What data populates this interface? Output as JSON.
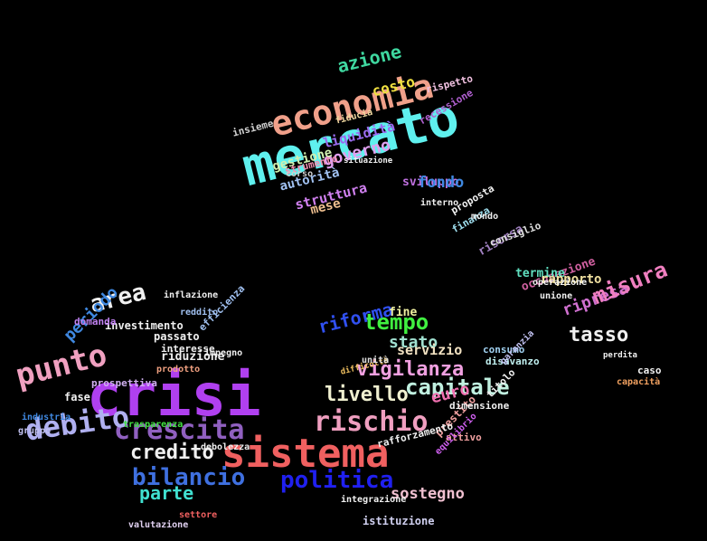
{
  "words": [
    {
      "text": "mercato",
      "color": "#5ff0ee"
    },
    {
      "text": "economia",
      "color": "#f0a08a"
    },
    {
      "text": "azione",
      "color": "#3fd8a0"
    },
    {
      "text": "costo",
      "color": "#f0e040"
    },
    {
      "text": "governo",
      "color": "#e0a0f0"
    },
    {
      "text": "gestione",
      "color": "#d0f0b0"
    },
    {
      "text": "liquidità",
      "color": "#9a6cf0"
    },
    {
      "text": "autorità",
      "color": "#a0c0f0"
    },
    {
      "text": "strumento",
      "color": "#f08fb0"
    },
    {
      "text": "fiducia",
      "color": "#f0d8a0"
    },
    {
      "text": "insieme",
      "color": "#d0d0d0"
    },
    {
      "text": "sviluppo",
      "color": "#c070e0"
    },
    {
      "text": "struttura",
      "color": "#d080f0"
    },
    {
      "text": "mese",
      "color": "#f0c090"
    },
    {
      "text": "fondo",
      "color": "#3f88e0"
    },
    {
      "text": "rispetto",
      "color": "#f0c0e0"
    },
    {
      "text": "recessione",
      "color": "#b060d0"
    },
    {
      "text": "corso",
      "color": "#d0d0d0"
    },
    {
      "text": "risorsa",
      "color": "#a080c0"
    },
    {
      "text": "occupazione",
      "color": "#d060a0"
    },
    {
      "text": "termine",
      "color": "#60e0c0"
    },
    {
      "text": "rapporto",
      "color": "#f0e0a0"
    },
    {
      "text": "ripresa",
      "color": "#d070d0"
    },
    {
      "text": "misura",
      "color": "#f07fc0"
    },
    {
      "text": "tasso",
      "color": "#f0f0f0"
    },
    {
      "text": "crisi",
      "color": "#b040f0"
    },
    {
      "text": "sistema",
      "color": "#f06060"
    },
    {
      "text": "bilancio",
      "color": "#3f70e0"
    },
    {
      "text": "politica",
      "color": "#2020f0"
    },
    {
      "text": "rischio",
      "color": "#f09fc0"
    },
    {
      "text": "crescita",
      "color": "#9060c0"
    },
    {
      "text": "punto",
      "color": "#f0a0c0"
    },
    {
      "text": "debito",
      "color": "#b0b0f0"
    },
    {
      "text": "credito",
      "color": "#f0f0f0"
    },
    {
      "text": "parte",
      "color": "#40e0d0"
    },
    {
      "text": "area",
      "color": "#f0f0f0"
    },
    {
      "text": "periodo",
      "color": "#3f88e0"
    },
    {
      "text": "investimento",
      "color": "#f0f0f0"
    },
    {
      "text": "passato",
      "color": "#f0f0f0"
    },
    {
      "text": "interesse",
      "color": "#f0f0f0"
    },
    {
      "text": "riduzione",
      "color": "#f0f0f0"
    },
    {
      "text": "prodotto",
      "color": "#f0a080"
    },
    {
      "text": "efficienza",
      "color": "#a0c0f0"
    },
    {
      "text": "reddito",
      "color": "#a0c0f0"
    },
    {
      "text": "domanda",
      "color": "#c080f0"
    },
    {
      "text": "prospettiva",
      "color": "#d0b0f0"
    },
    {
      "text": "trasparenza",
      "color": "#40e040"
    },
    {
      "text": "tempo",
      "color": "#40f040"
    },
    {
      "text": "riforma",
      "color": "#3050f0"
    },
    {
      "text": "stato",
      "color": "#a0e0d0"
    },
    {
      "text": "fine",
      "color": "#f0f0a0"
    },
    {
      "text": "servizio",
      "color": "#f0e0c0"
    },
    {
      "text": "vigilanza",
      "color": "#f0a0e0"
    },
    {
      "text": "capitale",
      "color": "#c0f0e0"
    },
    {
      "text": "livello",
      "color": "#f0f0d0"
    },
    {
      "text": "euro",
      "color": "#f070b0"
    },
    {
      "text": "consumo",
      "color": "#a0d0f0"
    },
    {
      "text": "disavanzo",
      "color": "#c0f0f0"
    },
    {
      "text": "sostegno",
      "color": "#f0c0d0"
    },
    {
      "text": "istituzione",
      "color": "#d0d0f0"
    },
    {
      "text": "valutazione",
      "color": "#e0d0f0"
    },
    {
      "text": "settore",
      "color": "#f06060"
    },
    {
      "text": "integrazione",
      "color": "#f0f0f0"
    },
    {
      "text": "prestito",
      "color": "#f0a0a0"
    },
    {
      "text": "titolo",
      "color": "#f0f0f0"
    },
    {
      "text": "dimensione",
      "color": "#f0f0f0"
    },
    {
      "text": "attivo",
      "color": "#f0a0a0"
    },
    {
      "text": "rafforzamento",
      "color": "#f0f0f0"
    },
    {
      "text": "difficoltà",
      "color": "#f0c060"
    },
    {
      "text": "unità",
      "color": "#e0e0e0"
    },
    {
      "text": "garanzia",
      "color": "#c0c0f0"
    },
    {
      "text": "equilibrio",
      "color": "#d060f0"
    },
    {
      "text": "fase",
      "color": "#f0f0f0"
    },
    {
      "text": "industria",
      "color": "#3f88e0"
    },
    {
      "text": "gruppo",
      "color": "#c0c0f0"
    },
    {
      "text": "impegno",
      "color": "#f0f0f0"
    },
    {
      "text": "caso",
      "color": "#f0f0f0"
    },
    {
      "text": "unione",
      "color": "#f0f0f0"
    },
    {
      "text": "capacità",
      "color": "#f0a060"
    },
    {
      "text": "consiglio",
      "color": "#e0e0e0"
    },
    {
      "text": "finanza",
      "color": "#a0e0f0"
    },
    {
      "text": "proposta",
      "color": "#f0f0f0"
    },
    {
      "text": "interno",
      "color": "#f0f0f0"
    },
    {
      "text": "inflazione",
      "color": "#f0f0f0"
    },
    {
      "text": "debolezza",
      "color": "#f0f0f0"
    },
    {
      "text": "mondo",
      "color": "#f0f0f0"
    },
    {
      "text": "situazione",
      "color": "#f0f0f0"
    },
    {
      "text": "operazione",
      "color": "#f0f0f0"
    },
    {
      "text": "perdita",
      "color": "#f0f0f0"
    }
  ]
}
